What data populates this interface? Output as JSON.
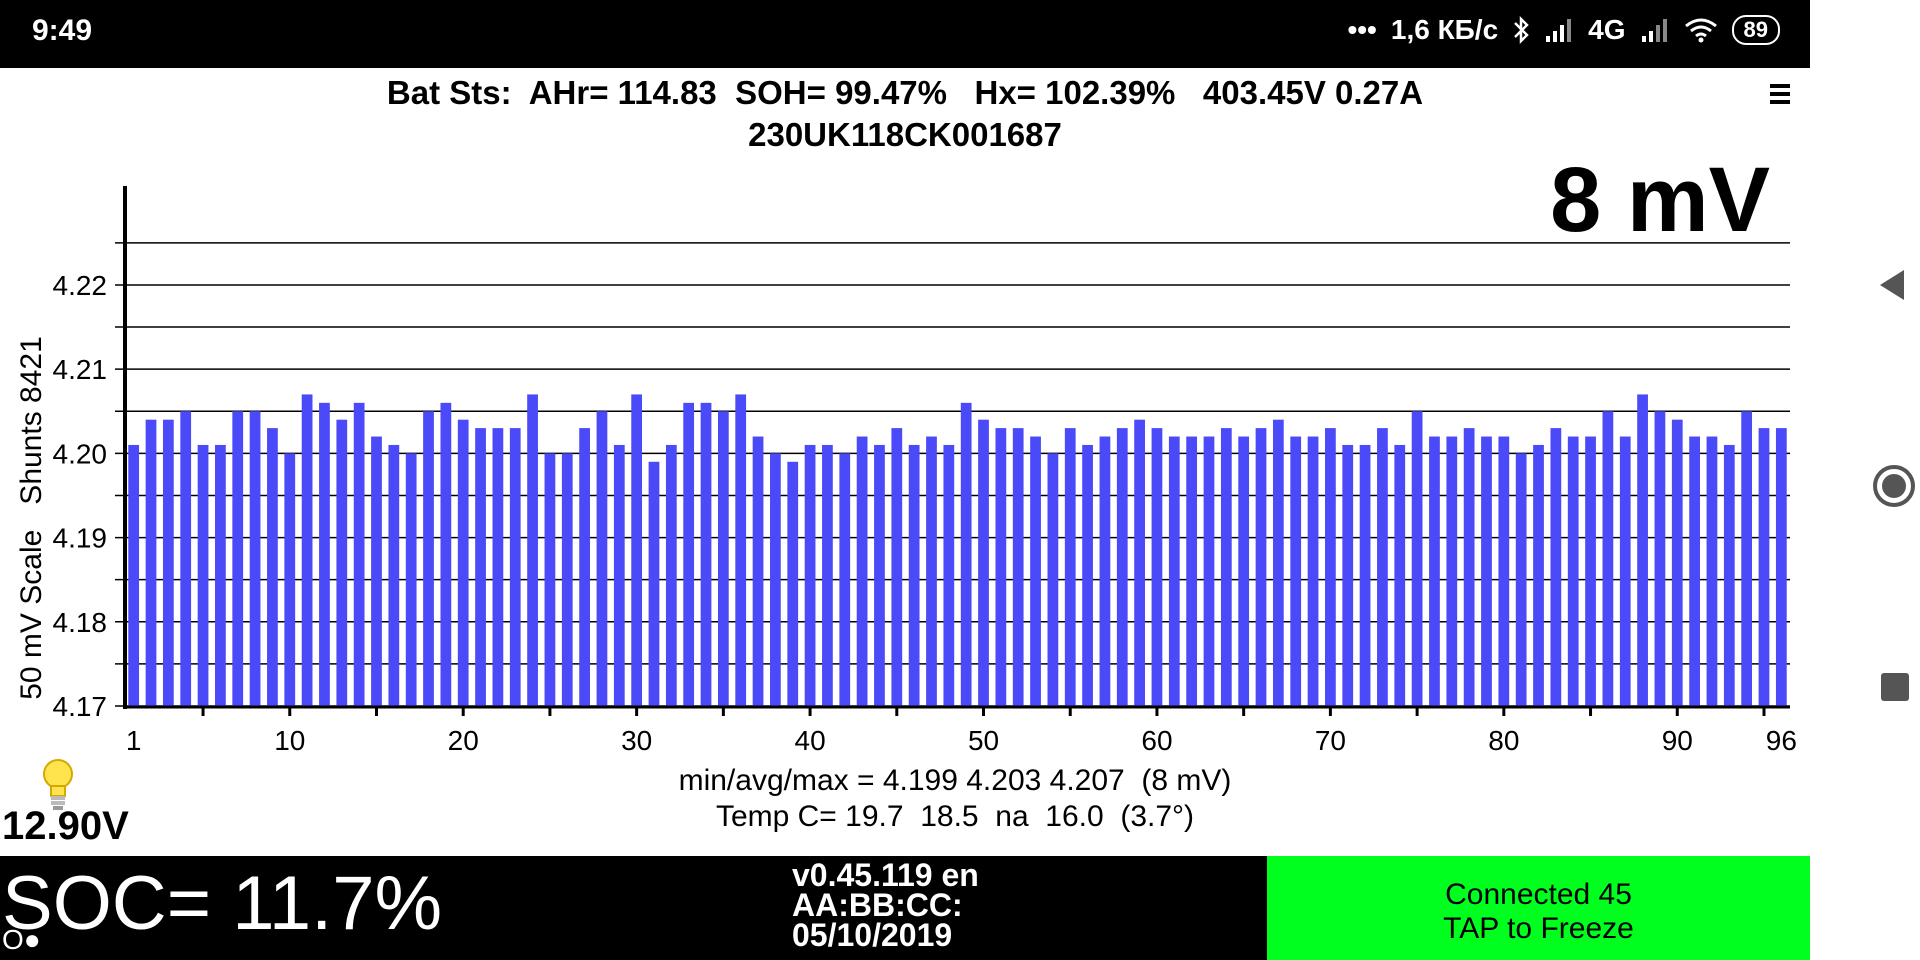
{
  "status_bar": {
    "time": "9:49",
    "dots": "•••",
    "speed": "1,6 КБ/с",
    "network_label": "4G",
    "battery": "89"
  },
  "header": {
    "line1": "Bat Sts:  AHr= 114.83  SOH= 99.47%   Hx= 102.39%   403.45V 0.27A",
    "line2": "230UK118CK001687"
  },
  "spread_label": "8 mV",
  "y_axis_label": "50 mV Scale   Shunts 8421",
  "chart_data": {
    "type": "bar",
    "color": "#4a4af8",
    "ylim": [
      4.17,
      4.227
    ],
    "ytick_labels": [
      "4.17",
      "4.18",
      "4.19",
      "4.20",
      "4.21",
      "4.22"
    ],
    "xtick_labels": [
      "1",
      "10",
      "20",
      "30",
      "40",
      "50",
      "60",
      "70",
      "80",
      "90",
      "96"
    ],
    "x": [
      1,
      2,
      3,
      4,
      5,
      6,
      7,
      8,
      9,
      10,
      11,
      12,
      13,
      14,
      15,
      16,
      17,
      18,
      19,
      20,
      21,
      22,
      23,
      24,
      25,
      26,
      27,
      28,
      29,
      30,
      31,
      32,
      33,
      34,
      35,
      36,
      37,
      38,
      39,
      40,
      41,
      42,
      43,
      44,
      45,
      46,
      47,
      48,
      49,
      50,
      51,
      52,
      53,
      54,
      55,
      56,
      57,
      58,
      59,
      60,
      61,
      62,
      63,
      64,
      65,
      66,
      67,
      68,
      69,
      70,
      71,
      72,
      73,
      74,
      75,
      76,
      77,
      78,
      79,
      80,
      81,
      82,
      83,
      84,
      85,
      86,
      87,
      88,
      89,
      90,
      91,
      92,
      93,
      94,
      95,
      96
    ],
    "values": [
      4.201,
      4.204,
      4.204,
      4.205,
      4.201,
      4.201,
      4.205,
      4.205,
      4.203,
      4.2,
      4.207,
      4.206,
      4.204,
      4.206,
      4.202,
      4.201,
      4.2,
      4.205,
      4.206,
      4.204,
      4.203,
      4.203,
      4.203,
      4.207,
      4.2,
      4.2,
      4.203,
      4.205,
      4.201,
      4.207,
      4.199,
      4.201,
      4.206,
      4.206,
      4.205,
      4.207,
      4.202,
      4.2,
      4.199,
      4.201,
      4.201,
      4.2,
      4.202,
      4.201,
      4.203,
      4.201,
      4.202,
      4.201,
      4.206,
      4.204,
      4.203,
      4.203,
      4.202,
      4.2,
      4.203,
      4.201,
      4.202,
      4.203,
      4.204,
      4.203,
      4.202,
      4.202,
      4.202,
      4.203,
      4.202,
      4.203,
      4.204,
      4.202,
      4.202,
      4.203,
      4.201,
      4.201,
      4.203,
      4.201,
      4.205,
      4.202,
      4.202,
      4.203,
      4.202,
      4.202,
      4.2,
      4.201,
      4.203,
      4.202,
      4.202,
      4.205,
      4.202,
      4.207,
      4.205,
      4.204,
      4.202,
      4.202,
      4.201,
      4.205,
      4.203,
      4.203
    ]
  },
  "stats": {
    "line1": "min/avg/max = 4.199 4.203 4.207  (8 mV)",
    "line2": "Temp C= 19.7  18.5  na  16.0  (3.7°)"
  },
  "aux_voltage": "12.90V",
  "soc": "SOC= 11.7%",
  "soc_sub": "O●",
  "version": {
    "line1": "v0.45.119 en",
    "line2": "AA:BB:CC:",
    "line3": "05/10/2019"
  },
  "connection": {
    "line1": "Connected 45",
    "line2": "TAP to Freeze",
    "color": "#00ff1e"
  }
}
